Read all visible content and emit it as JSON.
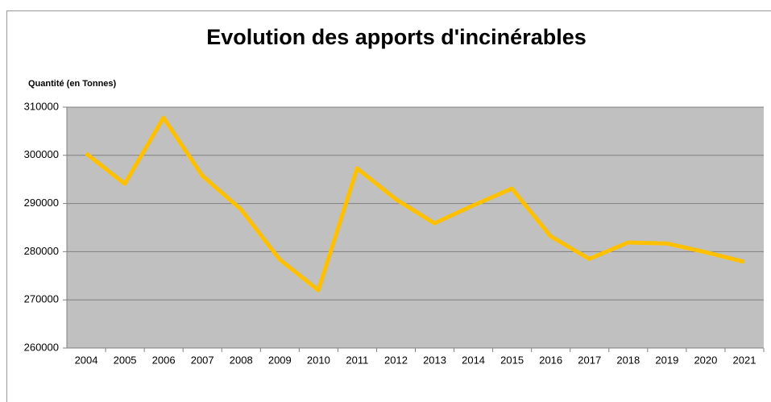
{
  "chart_data": {
    "type": "line",
    "title": "Evolution des apports d'incinérables",
    "y_label": "Quantité (en Tonnes)",
    "categories": [
      "2004",
      "2005",
      "2006",
      "2007",
      "2008",
      "2009",
      "2010",
      "2011",
      "2012",
      "2013",
      "2014",
      "2015",
      "2016",
      "2017",
      "2018",
      "2019",
      "2020",
      "2021"
    ],
    "values": [
      300400,
      294100,
      307800,
      295800,
      288800,
      278400,
      272000,
      297300,
      290900,
      285900,
      289600,
      293100,
      283200,
      278500,
      281900,
      281700,
      279900,
      277900
    ],
    "color": "#ffc000",
    "ylim": [
      260000,
      310000
    ],
    "yticks": [
      260000,
      270000,
      280000,
      290000,
      300000,
      310000
    ],
    "grid": true
  }
}
